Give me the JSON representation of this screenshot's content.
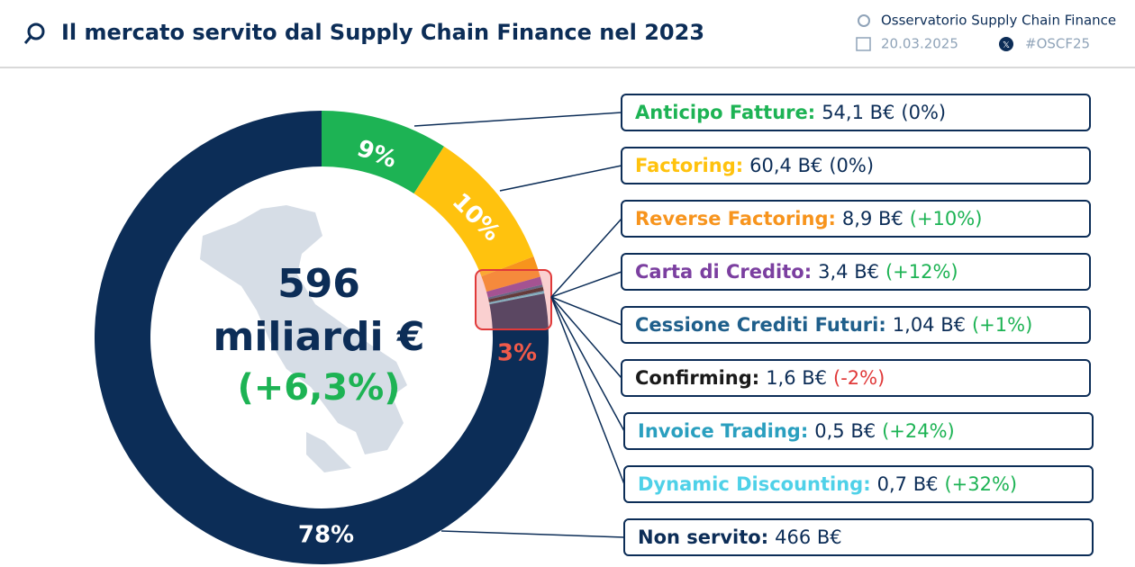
{
  "header": {
    "title": "Il mercato servito dal Supply Chain Finance nel 2023",
    "source": "Osservatorio Supply Chain Finance",
    "date": "20.03.2025",
    "hashtag": "#OSCF25"
  },
  "chart_data": {
    "type": "donut",
    "categories": [
      "Anticipo Fatture",
      "Factoring",
      "Reverse Factoring",
      "Carta di Credito",
      "Cessione Crediti Futuri",
      "Confirming",
      "Invoice Trading",
      "Dynamic Discounting",
      "Non servito"
    ],
    "values": [
      54.1,
      60.4,
      8.9,
      3.4,
      1.04,
      1.6,
      0.5,
      0.7,
      466
    ],
    "value_labels": [
      "54,1 B€",
      "60,4 B€",
      "8,9 B€",
      "3,4 B€",
      "1,04 B€",
      "1,6 B€",
      "0,5 B€",
      "0,7 B€",
      "466 B€"
    ],
    "changes": [
      "(0%)",
      "(0%)",
      "(+10%)",
      "(+12%)",
      "(+1%)",
      "(-2%)",
      "(+24%)",
      "(+32%)",
      null
    ],
    "change_colors": [
      "#0c2d57",
      "#0c2d57",
      "#1db354",
      "#1db354",
      "#1db354",
      "#e03a3a",
      "#1db354",
      "#1db354",
      null
    ],
    "colors": [
      "#1db354",
      "#ffc20e",
      "#f7941d",
      "#7b3fa0",
      "#1f5f8b",
      "#1a1a1a",
      "#2a9fbf",
      "#4fd1e8",
      "#0c2d57"
    ],
    "percent_labels": [
      {
        "value": 9,
        "label": "9%"
      },
      {
        "value": 10,
        "label": "10%"
      },
      {
        "value": 3,
        "label": "3%"
      },
      {
        "value": 78,
        "label": "78%"
      }
    ],
    "total": 596,
    "total_unit": "miliardi €",
    "total_change": "(+6,3%)"
  }
}
